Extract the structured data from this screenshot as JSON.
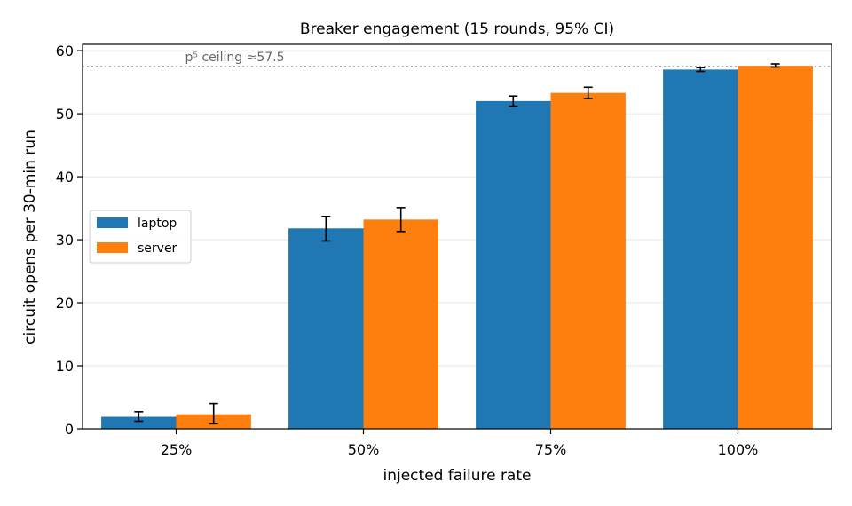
{
  "chart_data": {
    "type": "bar",
    "title": "Breaker engagement (15 rounds, 95% CI)",
    "xlabel": "injected failure rate",
    "ylabel": "circuit opens per 30-min run",
    "categories": [
      "25%",
      "50%",
      "75%",
      "100%"
    ],
    "ylim": [
      0,
      61
    ],
    "yticks": [
      0,
      10,
      20,
      30,
      40,
      50,
      60
    ],
    "grid": "y",
    "legend_position": "center-left",
    "series": [
      {
        "name": "laptop",
        "color": "#1f77b4",
        "values": [
          1.9,
          31.8,
          52.0,
          57.0
        ],
        "ci_low": [
          1.2,
          29.8,
          51.2,
          56.7
        ],
        "ci_high": [
          2.7,
          33.7,
          52.8,
          57.3
        ]
      },
      {
        "name": "server",
        "color": "#ff7f0e",
        "values": [
          2.3,
          33.2,
          53.3,
          57.6
        ],
        "ci_low": [
          0.8,
          31.3,
          52.4,
          57.4
        ],
        "ci_high": [
          4.0,
          35.1,
          54.2,
          57.9
        ]
      }
    ],
    "reference_line": {
      "value": 57.5,
      "label": "p⁵ ceiling ≈57.5",
      "color": "#888888",
      "style": "dotted"
    }
  }
}
